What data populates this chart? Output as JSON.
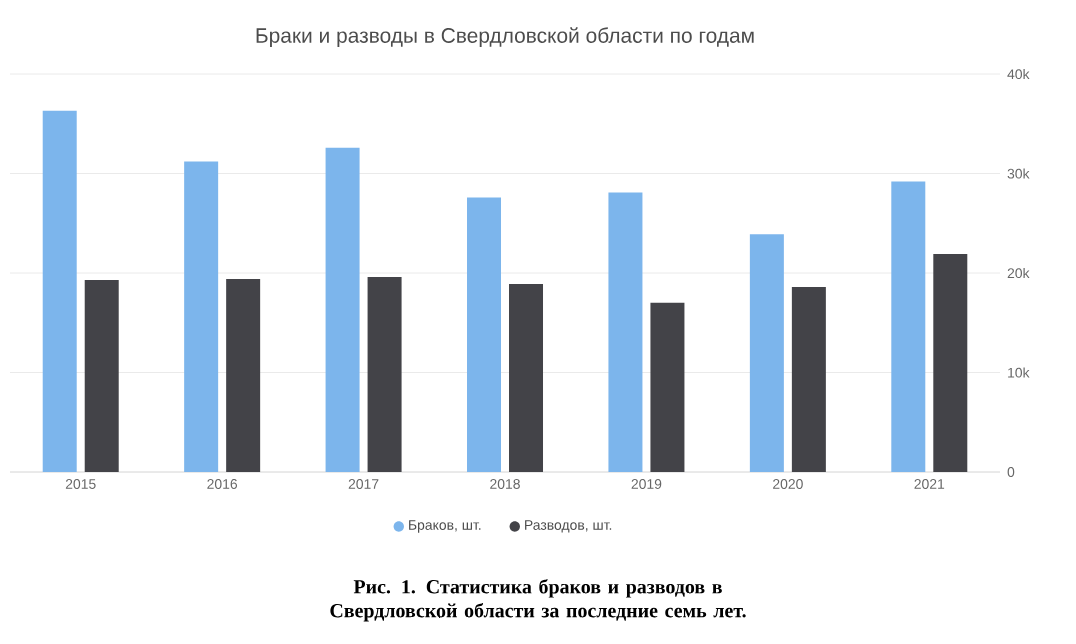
{
  "chart_data": {
    "type": "bar",
    "title": "Браки и разводы в Свердловской области по годам",
    "categories": [
      "2015",
      "2016",
      "2017",
      "2018",
      "2019",
      "2020",
      "2021"
    ],
    "series": [
      {
        "name": "Браков, шт.",
        "color": "#7cb5ec",
        "values": [
          36300,
          31200,
          32600,
          27600,
          28100,
          23900,
          29200
        ]
      },
      {
        "name": "Разводов, шт.",
        "color": "#434348",
        "values": [
          19300,
          19400,
          19600,
          18900,
          17000,
          18600,
          21900
        ]
      }
    ],
    "ylim": [
      0,
      40000
    ],
    "yticks": [
      0,
      {
        "value": 10000,
        "label": "10k"
      },
      {
        "value": 20000,
        "label": "20k"
      },
      {
        "value": 30000,
        "label": "30k"
      },
      {
        "value": 40000,
        "label": "40k"
      }
    ],
    "grid": "y",
    "legend": "bottom",
    "annotations": [
      "Рис. 1. Статистика браков и разводов в Свердловской области за последние семь лет."
    ]
  }
}
